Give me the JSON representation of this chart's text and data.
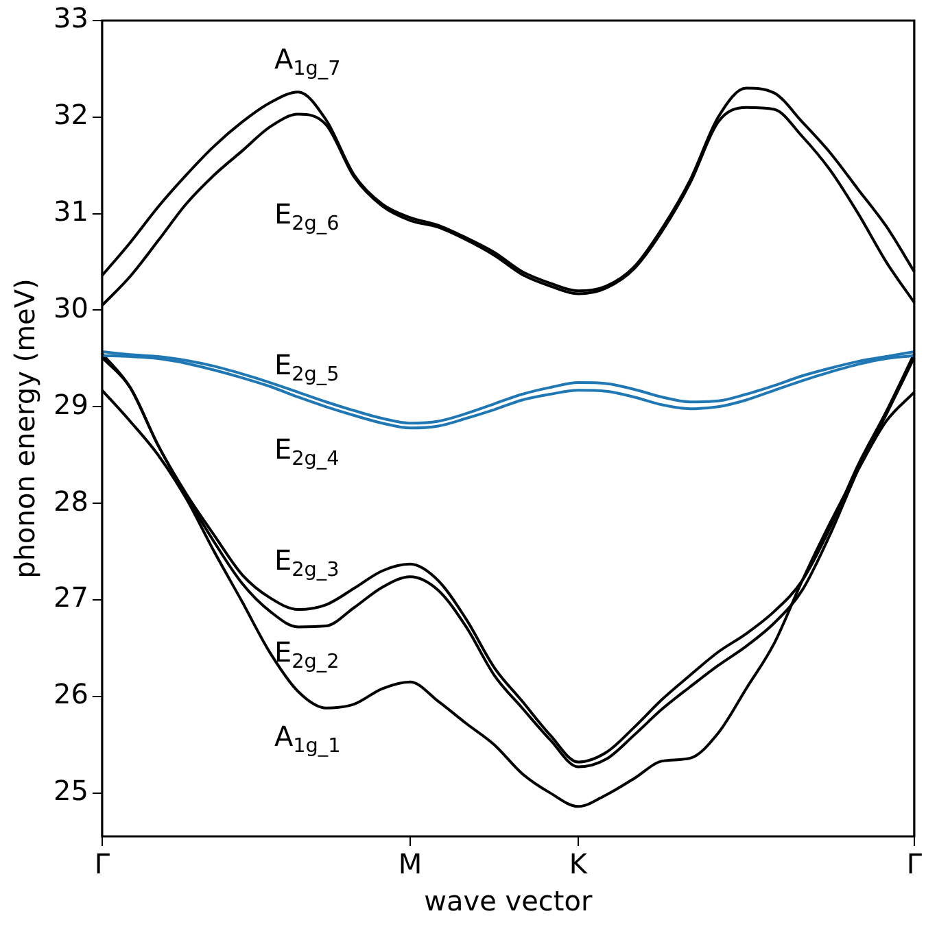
{
  "chart_data": {
    "type": "line",
    "xlabel": "wave vector",
    "ylabel": "phonon energy (meV)",
    "categories": [
      "Γ",
      null,
      null,
      null,
      null,
      null,
      null,
      null,
      null,
      null,
      null,
      "M",
      null,
      null,
      null,
      null,
      null,
      "K",
      null,
      null,
      null,
      null,
      null,
      null,
      null,
      null,
      null,
      null,
      null,
      "Γ"
    ],
    "ylim": [
      24.55,
      33
    ],
    "yticks": [
      25,
      26,
      27,
      28,
      29,
      30,
      31,
      32,
      33
    ],
    "grid": false,
    "legend": false,
    "marker": "none",
    "line_style": "solid",
    "series": [
      {
        "color": "#000000",
        "values": [
          30.36,
          30.7,
          31.07,
          31.4,
          31.7,
          31.95,
          32.15,
          32.26,
          31.97,
          31.4,
          31.1,
          30.96,
          30.88,
          30.75,
          30.6,
          30.4,
          30.28,
          30.2,
          30.25,
          30.45,
          30.85,
          31.35,
          32.0,
          32.3,
          32.25,
          31.95,
          31.63,
          31.25,
          30.87,
          30.4
        ]
      },
      {
        "color": "#000000",
        "values": [
          30.05,
          30.35,
          30.72,
          31.1,
          31.4,
          31.65,
          31.9,
          32.03,
          31.92,
          31.38,
          31.08,
          30.93,
          30.86,
          30.73,
          30.57,
          30.37,
          30.25,
          30.17,
          30.23,
          30.43,
          30.82,
          31.32,
          31.95,
          32.1,
          32.08,
          31.8,
          31.45,
          31.0,
          30.5,
          30.08
        ]
      },
      {
        "color": "#1f77b4",
        "values": [
          29.57,
          29.54,
          29.52,
          29.48,
          29.42,
          29.34,
          29.25,
          29.15,
          29.05,
          28.96,
          28.88,
          28.83,
          28.85,
          28.93,
          29.03,
          29.13,
          29.2,
          29.25,
          29.24,
          29.18,
          29.1,
          29.05,
          29.06,
          29.13,
          29.22,
          29.32,
          29.4,
          29.47,
          29.52,
          29.57
        ]
      },
      {
        "color": "#1f77b4",
        "values": [
          29.53,
          29.52,
          29.5,
          29.45,
          29.38,
          29.3,
          29.21,
          29.1,
          29.0,
          28.91,
          28.83,
          28.78,
          28.8,
          28.88,
          28.97,
          29.07,
          29.13,
          29.17,
          29.16,
          29.1,
          29.02,
          28.98,
          29.0,
          29.07,
          29.17,
          29.27,
          29.36,
          29.44,
          29.5,
          29.53
        ]
      },
      {
        "color": "#000000",
        "values": [
          29.55,
          29.2,
          28.6,
          28.1,
          27.67,
          27.26,
          27.02,
          26.9,
          26.95,
          27.12,
          27.3,
          27.37,
          27.2,
          26.8,
          26.3,
          25.95,
          25.6,
          25.32,
          25.42,
          25.68,
          25.97,
          26.22,
          26.46,
          26.65,
          26.88,
          27.2,
          27.75,
          28.4,
          28.95,
          29.55
        ]
      },
      {
        "color": "#000000",
        "values": [
          29.51,
          29.2,
          28.6,
          28.08,
          27.6,
          27.17,
          26.88,
          26.72,
          26.73,
          26.92,
          27.13,
          27.24,
          27.1,
          26.72,
          26.22,
          25.88,
          25.55,
          25.27,
          25.35,
          25.6,
          25.87,
          26.1,
          26.32,
          26.52,
          26.76,
          27.1,
          27.68,
          28.35,
          28.92,
          29.51
        ]
      },
      {
        "color": "#000000",
        "values": [
          29.17,
          28.85,
          28.5,
          28.05,
          27.5,
          26.98,
          26.45,
          26.05,
          25.88,
          25.92,
          26.08,
          26.15,
          25.95,
          25.72,
          25.5,
          25.2,
          25.0,
          24.86,
          24.98,
          25.15,
          25.33,
          25.36,
          25.62,
          26.08,
          26.55,
          27.2,
          27.8,
          28.35,
          28.85,
          29.15
        ]
      }
    ],
    "annotations": [
      "A$_{1g_7}$",
      "E$_{2g_6}$",
      "E$_{2g_5}$",
      "E$_{2g_4}$",
      "E$_{2g_3}$",
      "E$_{2g_2}$",
      "A$_{1g_1}$"
    ]
  }
}
